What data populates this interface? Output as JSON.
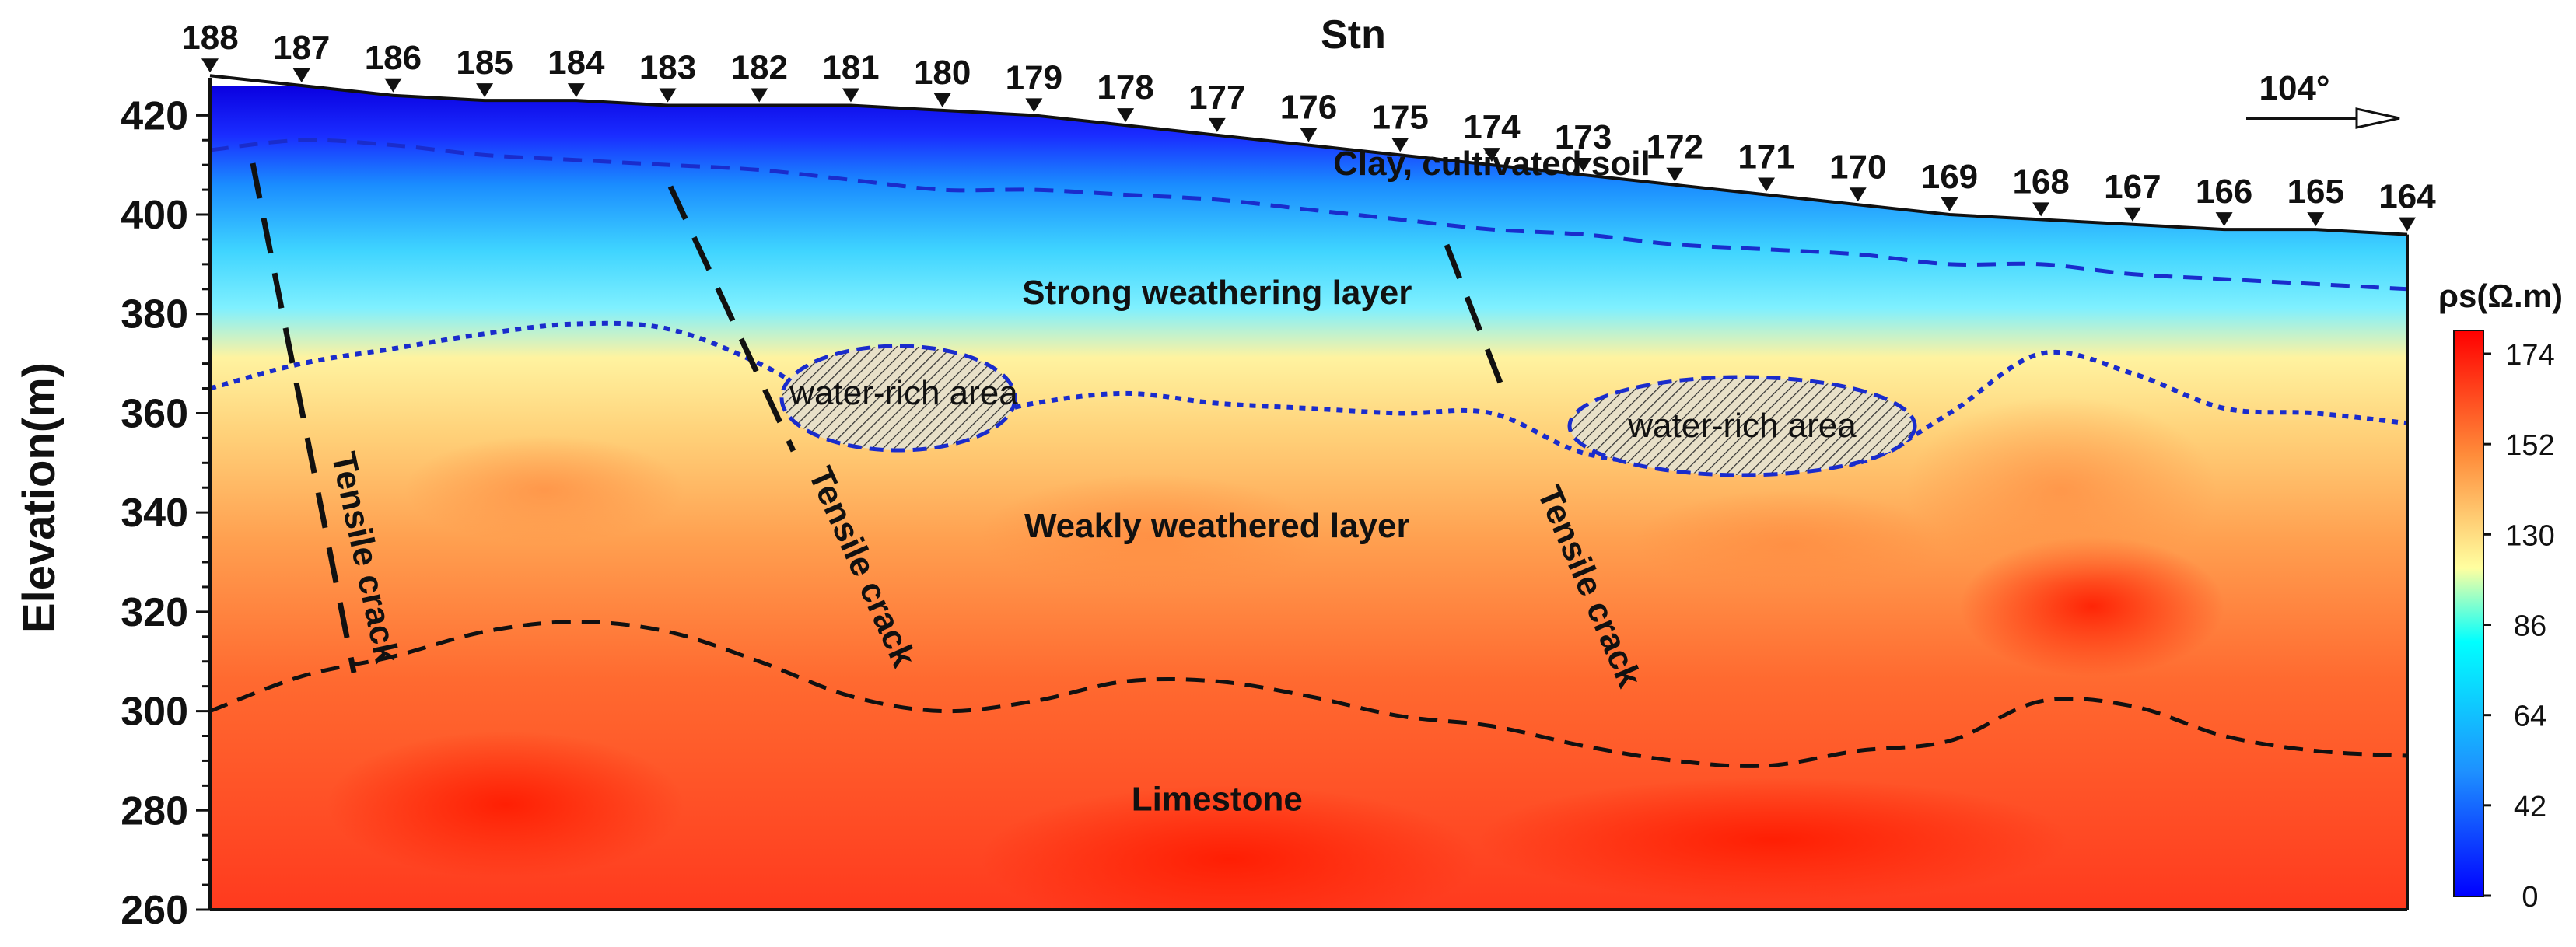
{
  "chart_data": {
    "type": "heatmap",
    "title": "Stn",
    "ylabel": "Elevation(m)",
    "ylim": [
      260,
      426
    ],
    "yticks": [
      260,
      280,
      300,
      320,
      340,
      360,
      380,
      400,
      420
    ],
    "stations": [
      188,
      187,
      186,
      185,
      184,
      183,
      182,
      181,
      180,
      179,
      178,
      177,
      176,
      175,
      174,
      173,
      172,
      171,
      170,
      169,
      168,
      167,
      166,
      165,
      164
    ],
    "station_label_row_1": [
      "188",
      "187",
      "186",
      "185",
      "184",
      "183",
      "182",
      "181",
      "180",
      "179",
      "178",
      "177",
      "176",
      "175",
      "174",
      "173",
      "172",
      "171",
      "170",
      "169",
      "168",
      "167",
      "166",
      "165",
      "164"
    ],
    "surface_elevation": [
      428,
      426,
      424,
      423,
      423,
      422,
      422,
      422,
      421,
      420,
      418,
      416,
      414,
      412,
      410,
      408,
      406,
      404,
      402,
      400,
      399,
      398,
      397,
      397,
      396
    ],
    "boundaries": [
      {
        "name": "clay_base",
        "style": "dashed",
        "y": [
          413,
          415,
          414,
          412,
          411,
          410,
          409,
          407,
          405,
          405,
          404,
          403,
          401,
          399,
          397,
          396,
          394,
          393,
          392,
          390,
          390,
          388,
          387,
          386,
          385
        ]
      },
      {
        "name": "strong_weathering_base",
        "style": "dotted",
        "y": [
          365,
          370,
          373,
          376,
          378,
          377,
          370,
          360,
          358,
          362,
          364,
          362,
          361,
          360,
          360,
          352,
          350,
          351,
          350,
          360,
          372,
          368,
          361,
          360,
          358
        ]
      },
      {
        "name": "limestone_top",
        "style": "dashed",
        "y": [
          300,
          307,
          311,
          316,
          318,
          316,
          310,
          303,
          300,
          302,
          306,
          306,
          303,
          299,
          297,
          293,
          290,
          289,
          292,
          294,
          302,
          301,
          295,
          292,
          291
        ]
      }
    ],
    "resistivity_colorbar": {
      "label": "ρs(Ω.m)",
      "ticks": [
        "174",
        "152",
        "130",
        "86",
        "64",
        "42",
        "0"
      ],
      "colors": [
        "#0000ff",
        "#00ffff",
        "#ffffa0",
        "#ff0000"
      ]
    },
    "annotations": [
      {
        "text": "Clay, cultivated soil",
        "station": 174,
        "elevation": 408
      },
      {
        "text": "Strong weathering layer",
        "station": 177,
        "elevation": 382
      },
      {
        "text": "water-rich area",
        "station": 181,
        "elevation": 364
      },
      {
        "text": "water-rich area",
        "station": 171,
        "elevation": 360
      },
      {
        "text": "Weakly weathered layer",
        "station": 177,
        "elevation": 335
      },
      {
        "text": "Limestone",
        "station": 177,
        "elevation": 280
      },
      {
        "text": "Tensile crack",
        "station": 186,
        "elevation": 332
      },
      {
        "text": "Tensile crack",
        "station": 181,
        "elevation": 322
      },
      {
        "text": "Tensile crack",
        "station": 173,
        "elevation": 320
      }
    ],
    "direction": "104°",
    "grid": false,
    "legend": "right"
  }
}
